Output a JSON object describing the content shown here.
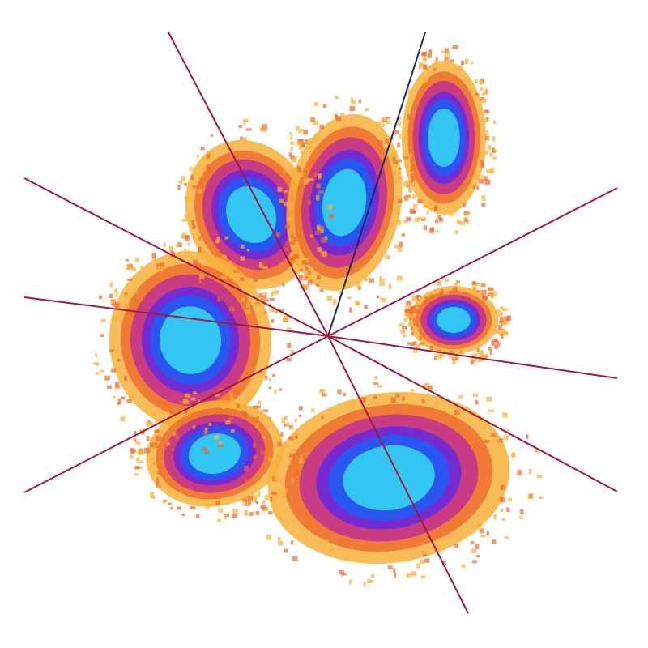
{
  "image": {
    "subject": "paw-pressure-map",
    "colors": {
      "background": "#ffffff",
      "low": "#f7b23b",
      "low_mid": "#ee6a2f",
      "mid": "#c2308f",
      "mid_high": "#6a2bd8",
      "high": "#2b55f0",
      "peak": "#34c6f2",
      "line_primary": "#a3173c",
      "line_secondary": "#1c2a5a"
    }
  }
}
